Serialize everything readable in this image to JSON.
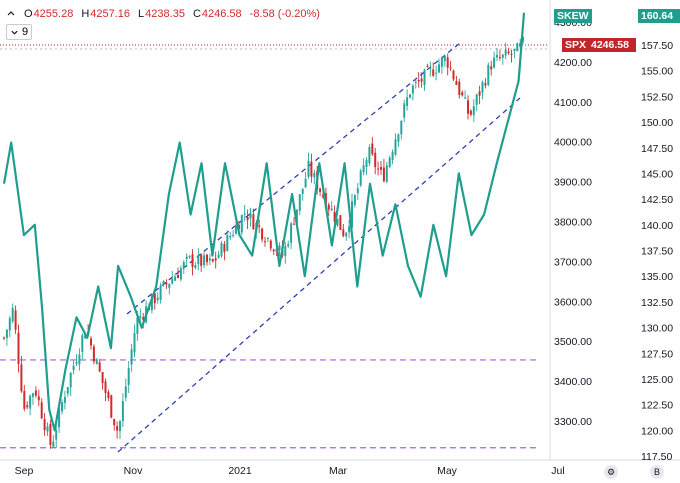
{
  "header": {
    "open_label": "O",
    "open": "4255.28",
    "high_label": "H",
    "high": "4257.16",
    "low_label": "L",
    "low": "4238.35",
    "close_label": "C",
    "close": "4246.58",
    "change": "-8.58 (-0.20%)"
  },
  "indicator_toggle": {
    "count": "9"
  },
  "corner_buttons": {
    "settings": "⚙",
    "b": "B"
  },
  "colors": {
    "up": "#26a69a",
    "down": "#d02b2b",
    "skew": "#1f9e8e",
    "channel": "#2f3fb3",
    "support": "#b05be0",
    "price_line": "#c0262a"
  },
  "chart_data": {
    "type": "candlestick_with_line_overlay",
    "series": [
      {
        "name": "SPX",
        "type": "candlestick",
        "axis": "left",
        "last": "4246.58",
        "ohlc_sample": [
          {
            "x": "2020-08-28",
            "v": 3508
          },
          {
            "x": "2020-09-02",
            "v": 3580
          },
          {
            "x": "2020-09-08",
            "v": 3332
          },
          {
            "x": "2020-09-14",
            "v": 3384
          },
          {
            "x": "2020-09-23",
            "v": 3236
          },
          {
            "x": "2020-09-30",
            "v": 3363
          },
          {
            "x": "2020-10-12",
            "v": 3534
          },
          {
            "x": "2020-10-30",
            "v": 3270
          },
          {
            "x": "2020-11-09",
            "v": 3550
          },
          {
            "x": "2020-11-24",
            "v": 3635
          },
          {
            "x": "2020-12-08",
            "v": 3702
          },
          {
            "x": "2020-12-21",
            "v": 3694
          },
          {
            "x": "2021-01-08",
            "v": 3824
          },
          {
            "x": "2021-01-29",
            "v": 3714
          },
          {
            "x": "2021-02-12",
            "v": 3934
          },
          {
            "x": "2021-03-04",
            "v": 3768
          },
          {
            "x": "2021-03-17",
            "v": 3974
          },
          {
            "x": "2021-03-25",
            "v": 3909
          },
          {
            "x": "2021-04-09",
            "v": 4128
          },
          {
            "x": "2021-04-29",
            "v": 4211
          },
          {
            "x": "2021-05-12",
            "v": 4063
          },
          {
            "x": "2021-05-24",
            "v": 4197
          },
          {
            "x": "2021-06-07",
            "v": 4226
          },
          {
            "x": "2021-06-11",
            "v": 4246.58
          }
        ]
      },
      {
        "name": "SKEW",
        "type": "line",
        "axis": "right",
        "last": "160.64",
        "points": [
          {
            "x": "2020-08-28",
            "y": 144.0
          },
          {
            "x": "2020-09-01",
            "y": 148.0
          },
          {
            "x": "2020-09-08",
            "y": 139.0
          },
          {
            "x": "2020-09-14",
            "y": 140.0
          },
          {
            "x": "2020-09-18",
            "y": 132.0
          },
          {
            "x": "2020-09-22",
            "y": 122.0
          },
          {
            "x": "2020-09-25",
            "y": 120.0
          },
          {
            "x": "2020-10-01",
            "y": 126.0
          },
          {
            "x": "2020-10-07",
            "y": 131.0
          },
          {
            "x": "2020-10-13",
            "y": 129.0
          },
          {
            "x": "2020-10-19",
            "y": 134.0
          },
          {
            "x": "2020-10-26",
            "y": 128.0
          },
          {
            "x": "2020-10-30",
            "y": 136.0
          },
          {
            "x": "2020-11-06",
            "y": 133.0
          },
          {
            "x": "2020-11-12",
            "y": 130.0
          },
          {
            "x": "2020-11-20",
            "y": 134.0
          },
          {
            "x": "2020-11-27",
            "y": 143.0
          },
          {
            "x": "2020-12-03",
            "y": 148.0
          },
          {
            "x": "2020-12-09",
            "y": 141.0
          },
          {
            "x": "2020-12-15",
            "y": 146.0
          },
          {
            "x": "2020-12-21",
            "y": 137.0
          },
          {
            "x": "2020-12-28",
            "y": 146.0
          },
          {
            "x": "2021-01-05",
            "y": 139.0
          },
          {
            "x": "2021-01-12",
            "y": 137.0
          },
          {
            "x": "2021-01-20",
            "y": 146.0
          },
          {
            "x": "2021-01-27",
            "y": 136.0
          },
          {
            "x": "2021-02-03",
            "y": 143.0
          },
          {
            "x": "2021-02-10",
            "y": 135.0
          },
          {
            "x": "2021-02-18",
            "y": 146.0
          },
          {
            "x": "2021-02-25",
            "y": 138.0
          },
          {
            "x": "2021-03-04",
            "y": 146.0
          },
          {
            "x": "2021-03-11",
            "y": 134.0
          },
          {
            "x": "2021-03-18",
            "y": 144.0
          },
          {
            "x": "2021-03-25",
            "y": 137.0
          },
          {
            "x": "2021-04-01",
            "y": 142.0
          },
          {
            "x": "2021-04-08",
            "y": 136.0
          },
          {
            "x": "2021-04-15",
            "y": 133.0
          },
          {
            "x": "2021-04-22",
            "y": 140.0
          },
          {
            "x": "2021-04-29",
            "y": 135.0
          },
          {
            "x": "2021-05-06",
            "y": 145.0
          },
          {
            "x": "2021-05-13",
            "y": 139.0
          },
          {
            "x": "2021-05-20",
            "y": 141.0
          },
          {
            "x": "2021-05-27",
            "y": 146.0
          },
          {
            "x": "2021-06-02",
            "y": 150.0
          },
          {
            "x": "2021-06-08",
            "y": 154.0
          },
          {
            "x": "2021-06-11",
            "y": 160.64
          }
        ]
      }
    ],
    "overlays": [
      {
        "type": "channel",
        "style": "dashed",
        "color": "#2f3fb3"
      },
      {
        "type": "horizontal_support",
        "style": "dashed",
        "color": "#b05be0",
        "value": 3453
      },
      {
        "type": "horizontal_support",
        "style": "dashed",
        "color": "#b05be0",
        "value": 3233
      }
    ],
    "left_axis_ticks": [
      "4300.00",
      "4200.00",
      "4100.00",
      "4000.00",
      "3900.00",
      "3800.00",
      "3700.00",
      "3600.00",
      "3500.00",
      "3400.00",
      "3300.00"
    ],
    "right_axis_ticks": [
      "157.50",
      "155.00",
      "152.50",
      "150.00",
      "147.50",
      "145.00",
      "142.50",
      "140.00",
      "137.50",
      "135.00",
      "132.50",
      "130.00",
      "127.50",
      "125.00",
      "122.50",
      "120.00",
      "117.50"
    ],
    "x_ticks": [
      "Sep",
      "Nov",
      "2021",
      "Mar",
      "May",
      "Jul"
    ],
    "labels": {
      "skew_tag": "SKEW",
      "skew_value": "160.64",
      "spx_tag": "SPX",
      "spx_value": "4246.58"
    }
  }
}
